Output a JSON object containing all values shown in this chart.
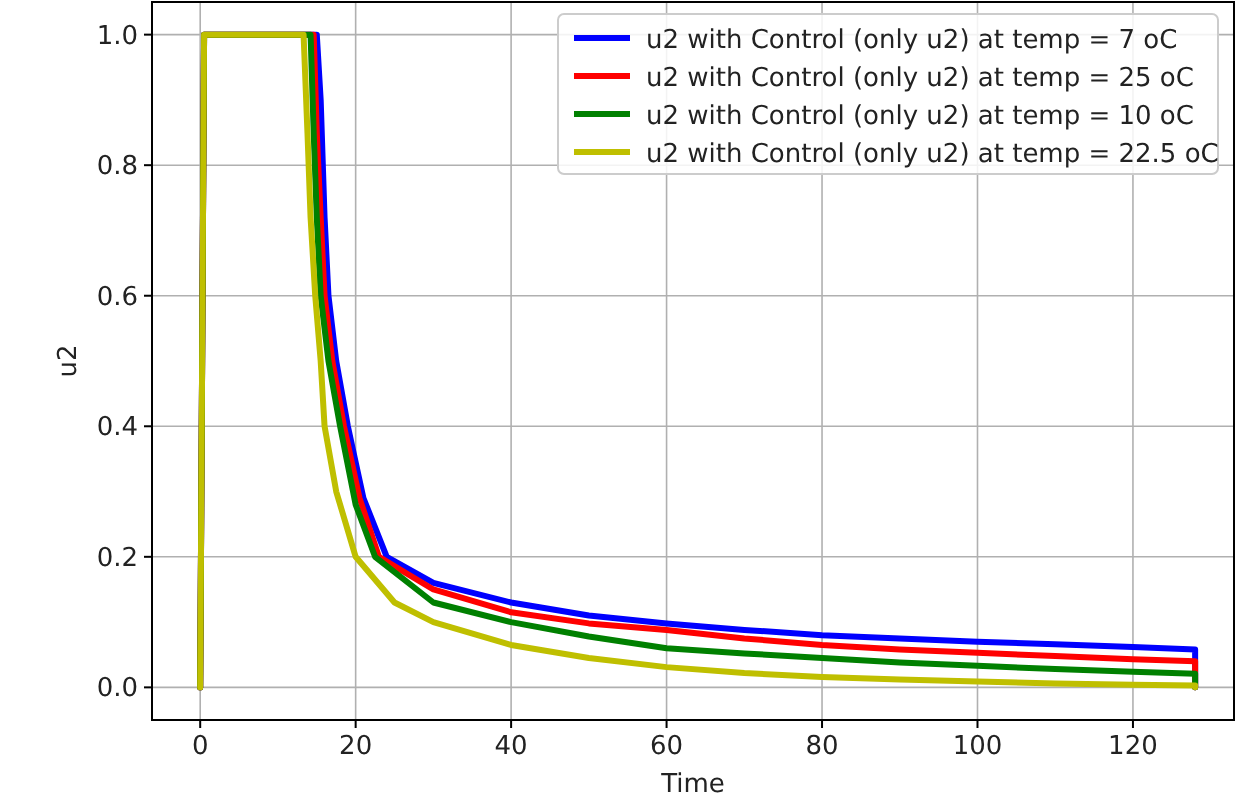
{
  "chart_data": {
    "type": "line",
    "xlabel": "Time",
    "ylabel": "u2",
    "xlim": [
      -6.2,
      133
    ],
    "ylim": [
      -0.05,
      1.05
    ],
    "xticks": [
      0,
      20,
      40,
      60,
      80,
      100,
      120
    ],
    "yticks": [
      {
        "value": 0,
        "label": "0.0"
      },
      {
        "value": 0.2,
        "label": "0.2"
      },
      {
        "value": 0.4,
        "label": "0.4"
      },
      {
        "value": 0.6,
        "label": "0.6"
      },
      {
        "value": 0.8,
        "label": "0.8"
      },
      {
        "value": 1,
        "label": "1.0"
      }
    ],
    "grid": true,
    "legend": "top right",
    "marker": "none",
    "line_style": "solid",
    "series": [
      {
        "name": "u2 with Control (only u2) at temp = 7 oC",
        "color": "#0000ff",
        "x": [
          0,
          0.5,
          15,
          15.5,
          16,
          16.5,
          17.5,
          19,
          21,
          24,
          30,
          40,
          50,
          60,
          70,
          80,
          90,
          100,
          110,
          120,
          128,
          128
        ],
        "values": [
          0,
          1,
          1,
          0.9,
          0.72,
          0.6,
          0.5,
          0.4,
          0.29,
          0.2,
          0.16,
          0.13,
          0.11,
          0.098,
          0.088,
          0.08,
          0.075,
          0.07,
          0.066,
          0.062,
          0.058,
          0
        ]
      },
      {
        "name": "u2 with Control (only u2) at temp = 25 oC",
        "color": "#ff0000",
        "x": [
          0,
          0.5,
          14.6,
          15,
          15.5,
          16,
          17,
          18.5,
          20.5,
          23,
          30,
          40,
          50,
          60,
          70,
          80,
          90,
          100,
          110,
          120,
          128,
          128
        ],
        "values": [
          0,
          1,
          1,
          0.85,
          0.72,
          0.6,
          0.5,
          0.4,
          0.29,
          0.2,
          0.15,
          0.115,
          0.098,
          0.088,
          0.075,
          0.065,
          0.058,
          0.053,
          0.048,
          0.043,
          0.04,
          0
        ]
      },
      {
        "name": "u2 with Control (only u2) at temp = 10 oC",
        "color": "#008000",
        "x": [
          0,
          0.5,
          14.2,
          14.6,
          15,
          15.5,
          16.5,
          18,
          20,
          22.5,
          30,
          40,
          50,
          60,
          70,
          80,
          90,
          100,
          110,
          120,
          128,
          128
        ],
        "values": [
          0,
          1,
          1,
          0.85,
          0.72,
          0.6,
          0.5,
          0.4,
          0.28,
          0.2,
          0.13,
          0.1,
          0.078,
          0.06,
          0.052,
          0.045,
          0.038,
          0.033,
          0.028,
          0.024,
          0.021,
          0
        ]
      },
      {
        "name": "u2 with Control (only u2) at temp = 22.5 oC",
        "color": "#bfbf00",
        "x": [
          0,
          0.5,
          13.3,
          13.8,
          14.2,
          14.8,
          15.5,
          16,
          17.5,
          20,
          25,
          30,
          40,
          50,
          60,
          70,
          80,
          90,
          100,
          110,
          120,
          128,
          128
        ],
        "values": [
          0,
          1,
          1,
          0.85,
          0.72,
          0.6,
          0.5,
          0.4,
          0.3,
          0.2,
          0.13,
          0.1,
          0.065,
          0.045,
          0.031,
          0.022,
          0.016,
          0.012,
          0.009,
          0.006,
          0.004,
          0.003,
          0
        ]
      }
    ]
  }
}
